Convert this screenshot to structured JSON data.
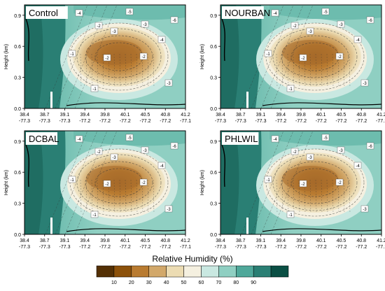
{
  "chart_data": {
    "type": "heatmap",
    "panels": [
      {
        "label": "Control"
      },
      {
        "label": "NOURBAN"
      },
      {
        "label": "DCBAL"
      },
      {
        "label": "PHLWIL"
      }
    ],
    "ylabel": "Height (km)",
    "y_ticks": [
      "0.0",
      "0.3",
      "0.6",
      "0.9"
    ],
    "ylim": [
      0,
      1.0
    ],
    "x_ticks": [
      {
        "lat": "38.4",
        "lon": "-77.3"
      },
      {
        "lat": "38.7",
        "lon": "-77.3"
      },
      {
        "lat": "39.1",
        "lon": "-77.3"
      },
      {
        "lat": "39.4",
        "lon": "-77.2"
      },
      {
        "lat": "39.8",
        "lon": "-77.2"
      },
      {
        "lat": "40.1",
        "lon": "-77.2"
      },
      {
        "lat": "40.5",
        "lon": "-77.2"
      },
      {
        "lat": "40.8",
        "lon": "-77.2"
      },
      {
        "lat": "41.2",
        "lon": "-77.1"
      }
    ],
    "colorbar": {
      "title": "Relative Humidity (%)",
      "levels": [
        10,
        20,
        30,
        40,
        50,
        60,
        70,
        80,
        90
      ],
      "colors": [
        "#543005",
        "#8c510a",
        "#b97b30",
        "#d2a86a",
        "#ecdcb3",
        "#f5f0e0",
        "#c9e8e1",
        "#8fcfc2",
        "#4fa89a",
        "#2a7f74",
        "#0a4f44"
      ]
    },
    "contour_labels": [
      "-1",
      "-2",
      "-3",
      "-4",
      "-5",
      "-6"
    ]
  }
}
